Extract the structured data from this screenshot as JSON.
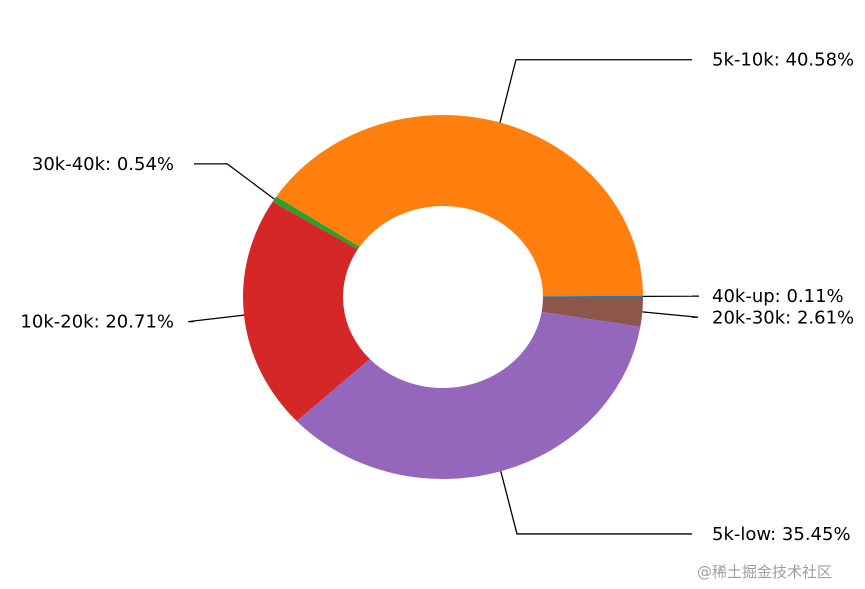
{
  "chart_data": {
    "type": "pie",
    "donut": true,
    "slices": [
      {
        "label": "5k-10k",
        "value": 40.58,
        "label_text": "5k-10k: 40.58%",
        "color": "#ff7f0e"
      },
      {
        "label": "30k-40k",
        "value": 0.54,
        "label_text": "30k-40k: 0.54%",
        "color": "#2ca02c"
      },
      {
        "label": "10k-20k",
        "value": 20.71,
        "label_text": "10k-20k: 20.71%",
        "color": "#d62728"
      },
      {
        "label": "5k-low",
        "value": 35.45,
        "label_text": "5k-low: 35.45%",
        "color": "#9467bd"
      },
      {
        "label": "20k-30k",
        "value": 2.61,
        "label_text": "20k-30k: 2.61%",
        "color": "#8c564b"
      },
      {
        "label": "40k-up",
        "value": 0.11,
        "label_text": "40k-up: 0.11%",
        "color": "#1f77b4"
      }
    ]
  },
  "watermark": "@稀土掘金技术社区"
}
